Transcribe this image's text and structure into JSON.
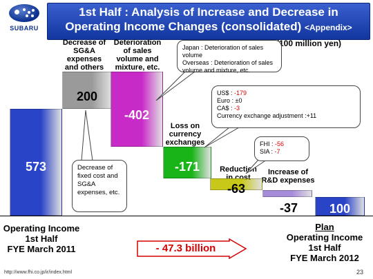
{
  "logo": {
    "text": "SUBARU"
  },
  "title": {
    "line1": "1st Half : Analysis of Increase and Decrease in",
    "line2": "Operating Income Changes (consolidated)",
    "appendix": "<Appendix>"
  },
  "unit": "(100 million yen)",
  "column_headers": {
    "sga": "Decrease of SG&A expenses and others",
    "sales": "Deterioration of sales volume and mixture, etc.",
    "currency": "Loss on currency exchanges",
    "cost": "Reduction in cost",
    "rnd": "Increase of R&D expenses"
  },
  "callouts": {
    "sga": "Decrease of fixed cost and SG&A expenses, etc.",
    "sales_line1": "Japan : Deterioration of sales volume",
    "sales_line2": "Overseas : Deterioration of sales volume and mixture, etc.",
    "fx_rows": [
      {
        "label": "US$ :",
        "value": "-179"
      },
      {
        "label": "Euro :",
        "value": "±0"
      },
      {
        "label": "CA$ :",
        "value": "-3"
      }
    ],
    "fx_note": "Currency exchange adjustment :+11",
    "cost_rows": [
      {
        "label": "FHI :",
        "value": "-56"
      },
      {
        "label": "SIA :",
        "value": "-7"
      }
    ]
  },
  "footer": {
    "left": [
      "Operating Income",
      "1st Half",
      "FYE March 2011"
    ],
    "right_title": "Plan",
    "right": [
      "Operating Income",
      "1st Half",
      "FYE March 2012"
    ],
    "change": "- 47.3 billion"
  },
  "url": "http://www.fhi.co.jp/ir/index.html",
  "page": "23",
  "colors": {
    "start": "#2a44c8",
    "sga": "#9a9a9a",
    "sales": "#c82ac8",
    "currency": "#18b418",
    "cost": "#c8c818",
    "rnd": "#a68cd8",
    "end": "#2a44c8"
  },
  "chart_data": {
    "type": "waterfall",
    "categories": [
      "Operating Income 1st Half FYE March 2011",
      "Decrease of SG&A expenses and others",
      "Deterioration of sales volume and mixture, etc.",
      "Loss on currency exchanges",
      "Reduction in cost",
      "Increase of R&D expenses",
      "Plan Operating Income 1st Half FYE March 2012"
    ],
    "labels": [
      "573",
      "200",
      "-402",
      "-171",
      "-63",
      "-37",
      "100"
    ],
    "values": [
      573,
      200,
      -402,
      -171,
      -63,
      -37,
      100
    ]
  }
}
